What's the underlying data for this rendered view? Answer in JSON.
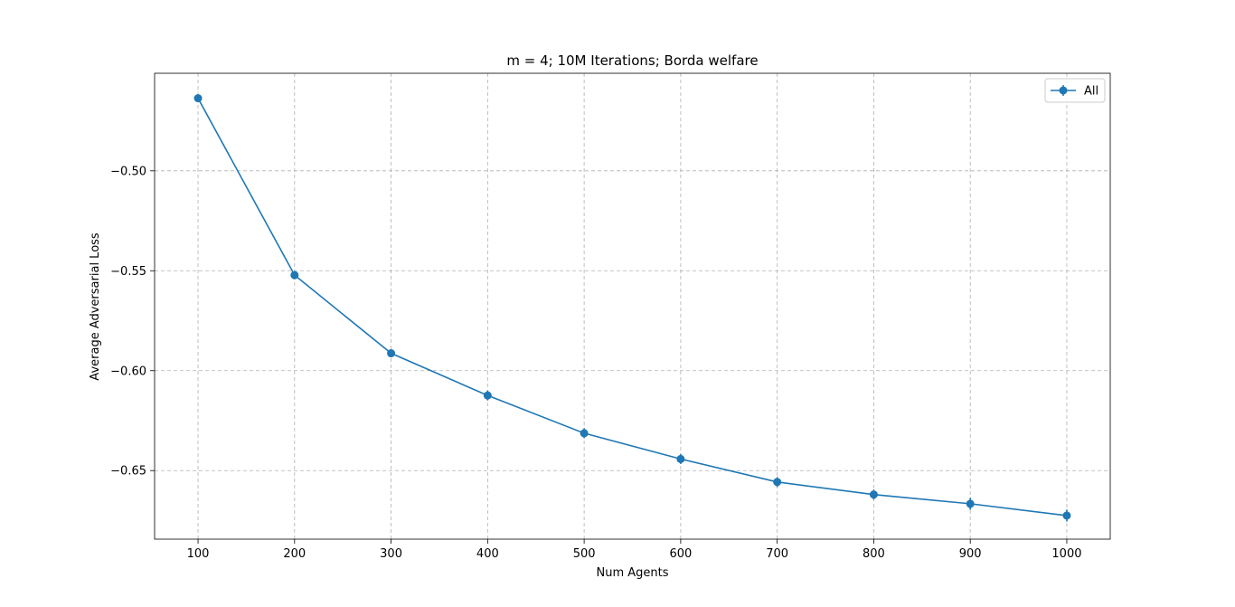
{
  "chart_data": {
    "type": "line",
    "title": "m = 4; 10M Iterations; Borda welfare",
    "xlabel": "Num Agents",
    "ylabel": "Average Adversarial Loss",
    "x": [
      100,
      200,
      300,
      400,
      500,
      600,
      700,
      800,
      900,
      1000
    ],
    "series": [
      {
        "name": "All",
        "color": "#1f77b4",
        "marker": "circle",
        "error_bars": true,
        "values": [
          -0.4637,
          -0.5522,
          -0.5913,
          -0.6124,
          -0.6313,
          -0.6442,
          -0.6557,
          -0.662,
          -0.6666,
          -0.6725
        ],
        "errors": [
          0.002,
          0.002,
          0.002,
          0.0025,
          0.0025,
          0.0025,
          0.0025,
          0.0025,
          0.003,
          0.003
        ]
      }
    ],
    "xticks": [
      100,
      200,
      300,
      400,
      500,
      600,
      700,
      800,
      900,
      1000
    ],
    "xtick_labels": [
      "100",
      "200",
      "300",
      "400",
      "500",
      "600",
      "700",
      "800",
      "900",
      "1000"
    ],
    "yticks": [
      -0.5,
      -0.55,
      -0.6,
      -0.65
    ],
    "ytick_labels": [
      "−0.50",
      "−0.55",
      "−0.60",
      "−0.65"
    ],
    "xlim": [
      55,
      1045
    ],
    "ylim": [
      -0.6843,
      -0.4512
    ],
    "grid": true,
    "grid_style": "dashed",
    "legend_position": "top-right"
  }
}
